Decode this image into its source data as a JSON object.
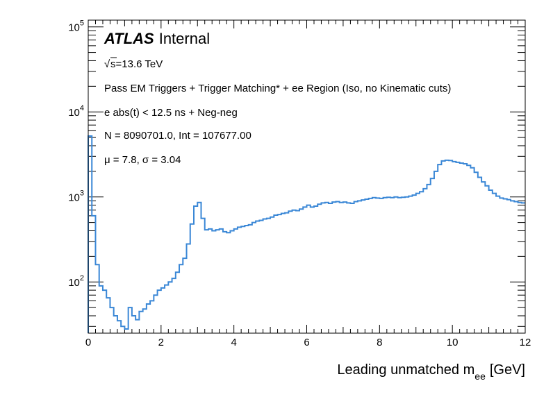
{
  "chart_data": {
    "type": "line",
    "experiment": "ATLAS",
    "status": "Internal",
    "energy": "√s=13.6 TeV",
    "energy_text": "s=13.6 TeV",
    "selection": "Pass EM Triggers + Trigger Matching* + ee Region (Iso, no Kinematic cuts)",
    "timing_cut": "e abs(t) < 12.5 ns + Neg-neg",
    "stats": "N = 8090701.0, Int  = 107677.00",
    "fit": "μ = 7.8, σ = 3.04",
    "xlabel": "Leading unmatched m",
    "xlabel_sub": "ee",
    "xlabel_unit": "[GeV]",
    "xlim": [
      0,
      12
    ],
    "ylim": [
      25,
      120000
    ],
    "yscale": "log",
    "xticks": [
      "0",
      "2",
      "4",
      "6",
      "8",
      "10",
      "12"
    ],
    "yticks": [
      {
        "base": "10",
        "exp": "2",
        "value": 100
      },
      {
        "base": "10",
        "exp": "3",
        "value": 1000
      },
      {
        "base": "10",
        "exp": "4",
        "value": 10000
      },
      {
        "base": "10",
        "exp": "5",
        "value": 100000
      }
    ],
    "line_color": "#3a87d6",
    "bin_width": 0.1,
    "series": [
      {
        "values": [
          5200,
          600,
          160,
          90,
          80,
          65,
          50,
          40,
          35,
          30,
          28,
          50,
          40,
          36,
          45,
          48,
          55,
          60,
          70,
          80,
          85,
          92,
          100,
          110,
          130,
          160,
          190,
          280,
          480,
          780,
          860,
          560,
          410,
          420,
          400,
          410,
          420,
          390,
          380,
          400,
          420,
          440,
          450,
          460,
          470,
          500,
          520,
          530,
          550,
          560,
          580,
          610,
          620,
          640,
          650,
          680,
          700,
          690,
          720,
          760,
          800,
          760,
          780,
          820,
          850,
          860,
          840,
          870,
          880,
          860,
          870,
          850,
          840,
          880,
          900,
          920,
          940,
          960,
          980,
          970,
          960,
          980,
          990,
          980,
          1000,
          980,
          990,
          1000,
          1020,
          1050,
          1100,
          1150,
          1250,
          1400,
          1650,
          2000,
          2400,
          2650,
          2700,
          2680,
          2600,
          2550,
          2500,
          2450,
          2350,
          2200,
          1950,
          1700,
          1500,
          1350,
          1200,
          1100,
          1020,
          970,
          950,
          930,
          900,
          880,
          860,
          850
        ]
      }
    ]
  }
}
